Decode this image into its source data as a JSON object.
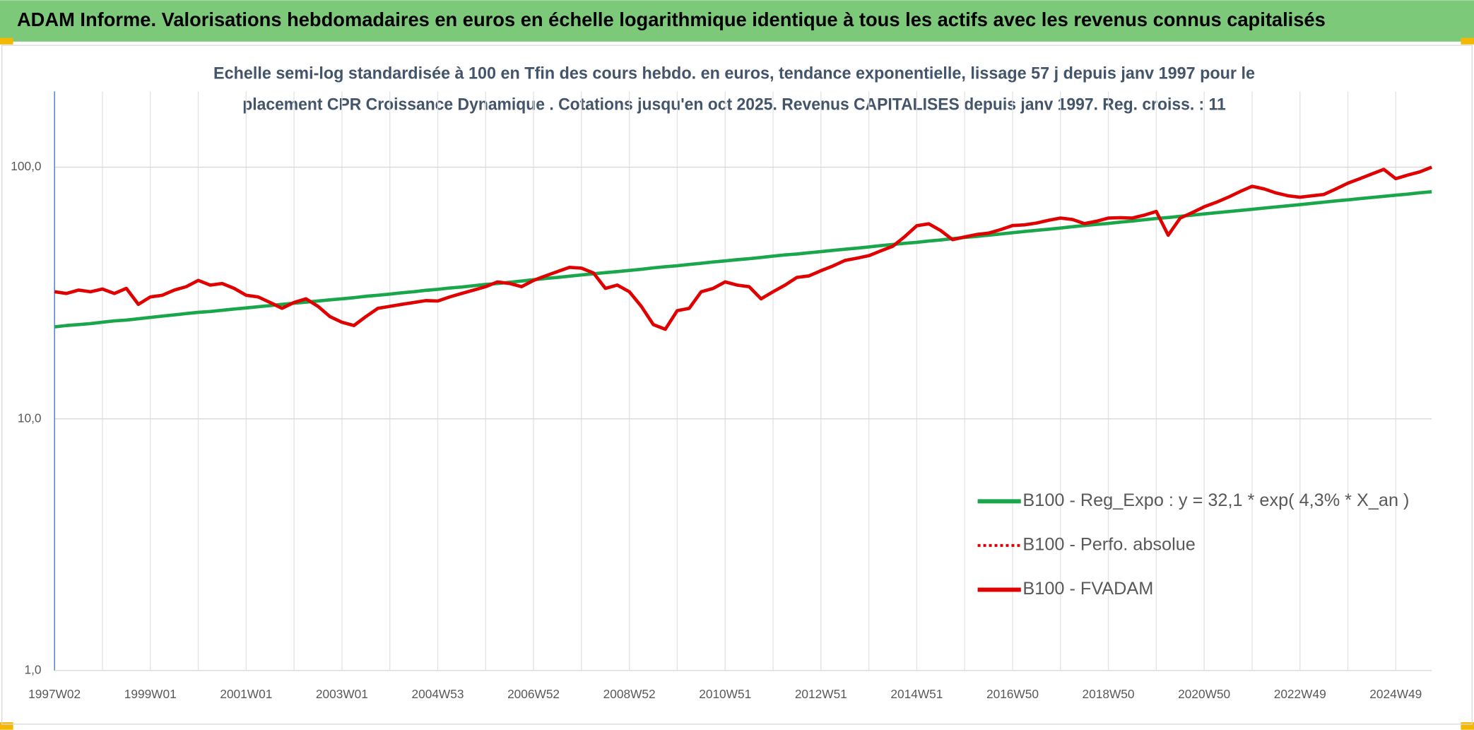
{
  "chart_data": {
    "type": "line",
    "title": "ADAM Informe. Valorisations hebdomadaires en euros en échelle logarithmique identique à tous les actifs avec les revenus connus capitalisés",
    "subtitle": [
      "Echelle semi-log standardisée à 100 en Tfin des cours hebdo. en euros, tendance exponentielle, lissage 57 j depuis janv 1997 pour le",
      "placement CPR Croissance Dynamique . Cotations jusqu'en oct 2025. Revenus CAPITALISES depuis janv 1997. Reg. croiss. : 11"
    ],
    "categories": [
      "1997W02",
      null,
      null,
      null,
      null,
      null,
      null,
      null,
      "1999W01",
      null,
      null,
      null,
      null,
      null,
      null,
      null,
      "2001W01",
      null,
      null,
      null,
      null,
      null,
      null,
      null,
      "2003W01",
      null,
      null,
      null,
      null,
      null,
      null,
      null,
      "2004W53",
      null,
      null,
      null,
      null,
      null,
      null,
      null,
      "2006W52",
      null,
      null,
      null,
      null,
      null,
      null,
      null,
      "2008W52",
      null,
      null,
      null,
      null,
      null,
      null,
      null,
      "2010W51",
      null,
      null,
      null,
      null,
      null,
      null,
      null,
      "2012W51",
      null,
      null,
      null,
      null,
      null,
      null,
      null,
      "2014W51",
      null,
      null,
      null,
      null,
      null,
      null,
      null,
      "2016W50",
      null,
      null,
      null,
      null,
      null,
      null,
      null,
      "2018W50",
      null,
      null,
      null,
      null,
      null,
      null,
      null,
      "2020W50",
      null,
      null,
      null,
      null,
      null,
      null,
      null,
      "2022W49",
      null,
      null,
      null,
      null,
      null,
      null,
      null,
      "2024W49",
      null,
      null,
      null
    ],
    "series": [
      {
        "name": "B100 - Reg_Expo : y = 32,1 * exp( 4,3% *  X_an )",
        "color": "#1aa64a",
        "style": "solid",
        "values": [
          23.2,
          23.5,
          23.7,
          23.9,
          24.2,
          24.5,
          24.7,
          25.0,
          25.3,
          25.6,
          25.9,
          26.2,
          26.5,
          26.7,
          27.0,
          27.3,
          27.6,
          27.9,
          28.2,
          28.5,
          28.8,
          29.1,
          29.4,
          29.7,
          30.0,
          30.3,
          30.7,
          31.0,
          31.3,
          31.7,
          32.0,
          32.4,
          32.7,
          33.1,
          33.4,
          33.8,
          34.2,
          34.5,
          34.9,
          35.3,
          35.7,
          36.1,
          36.5,
          36.9,
          37.3,
          37.7,
          38.1,
          38.5,
          38.9,
          39.3,
          39.8,
          40.2,
          40.6,
          41.1,
          41.5,
          42.0,
          42.4,
          42.9,
          43.3,
          43.8,
          44.3,
          44.8,
          45.2,
          45.7,
          46.2,
          46.7,
          47.2,
          47.7,
          48.2,
          48.8,
          49.3,
          49.8,
          50.3,
          50.9,
          51.4,
          52.0,
          52.6,
          53.1,
          53.7,
          54.3,
          54.9,
          55.5,
          56.1,
          56.7,
          57.3,
          58.0,
          58.6,
          59.2,
          59.8,
          60.5,
          61.1,
          61.8,
          62.5,
          63.1,
          63.8,
          64.5,
          65.2,
          65.9,
          66.6,
          67.3,
          68.0,
          68.8,
          69.5,
          70.3,
          71.0,
          71.8,
          72.6,
          73.4,
          74.2,
          75.0,
          75.8,
          76.6,
          77.4,
          78.2,
          79.1,
          79.9
        ]
      },
      {
        "name": "B100 - Perfo. absolue",
        "color": "#e00000",
        "style": "dotted",
        "values": [
          32,
          31.5,
          32.5,
          32,
          32.8,
          31.5,
          33,
          28.5,
          30.5,
          31,
          32.5,
          33.5,
          35.5,
          34,
          34.5,
          33,
          31,
          30.5,
          29,
          27.5,
          29,
          30,
          28,
          25.5,
          24.2,
          23.5,
          25.5,
          27.5,
          28,
          28.5,
          29,
          29.5,
          29.4,
          30.5,
          31.5,
          32.5,
          33.5,
          35,
          34.5,
          33.5,
          35.5,
          37,
          38.5,
          40,
          39.7,
          38,
          33,
          34,
          32,
          28,
          23.7,
          22.7,
          26.9,
          27.5,
          32,
          33,
          35,
          34,
          33.5,
          30,
          32,
          34,
          36.5,
          37,
          38.8,
          40.5,
          42.6,
          43.5,
          44.5,
          46.5,
          48.5,
          53,
          58.5,
          59.6,
          56,
          51.5,
          52.8,
          54,
          54.7,
          56.5,
          58.6,
          59,
          60,
          61.5,
          62.8,
          62,
          59.7,
          61,
          62.8,
          63,
          62.8,
          64.5,
          66.7,
          53.7,
          62.8,
          66,
          69.6,
          72.5,
          75.9,
          80,
          84,
          82,
          79,
          77,
          76,
          77,
          77.9,
          82,
          86.4,
          90,
          94,
          98,
          90,
          93,
          95.8,
          100
        ]
      },
      {
        "name": "B100 - FVADAM",
        "color": "#e00000",
        "style": "solid",
        "values": [
          32,
          31.5,
          32.5,
          32,
          32.8,
          31.5,
          33,
          28.5,
          30.5,
          31,
          32.5,
          33.5,
          35.5,
          34,
          34.5,
          33,
          31,
          30.5,
          29,
          27.5,
          29,
          30,
          28,
          25.5,
          24.2,
          23.5,
          25.5,
          27.5,
          28,
          28.5,
          29,
          29.5,
          29.4,
          30.5,
          31.5,
          32.5,
          33.5,
          35,
          34.5,
          33.5,
          35.5,
          37,
          38.5,
          40,
          39.7,
          38,
          33,
          34,
          32,
          28,
          23.7,
          22.7,
          26.9,
          27.5,
          32,
          33,
          35,
          34,
          33.5,
          30,
          32,
          34,
          36.5,
          37,
          38.8,
          40.5,
          42.6,
          43.5,
          44.5,
          46.5,
          48.5,
          53,
          58.5,
          59.6,
          56,
          51.5,
          52.8,
          54,
          54.7,
          56.5,
          58.6,
          59,
          60,
          61.5,
          62.8,
          62,
          59.7,
          61,
          62.8,
          63,
          62.8,
          64.5,
          66.7,
          53.7,
          62.8,
          66,
          69.6,
          72.5,
          75.9,
          80,
          84,
          82,
          79,
          77,
          76,
          77,
          77.9,
          82,
          86.4,
          90,
          94,
          98,
          90,
          93,
          95.8,
          100
        ]
      }
    ],
    "log_scale": true,
    "grid": true,
    "legend_position": "right",
    "ylim": [
      1,
      200
    ],
    "yticks": [
      {
        "value": 1,
        "label": "1,0"
      },
      {
        "value": 10,
        "label": "10,0"
      },
      {
        "value": 100,
        "label": "100,0"
      }
    ]
  }
}
